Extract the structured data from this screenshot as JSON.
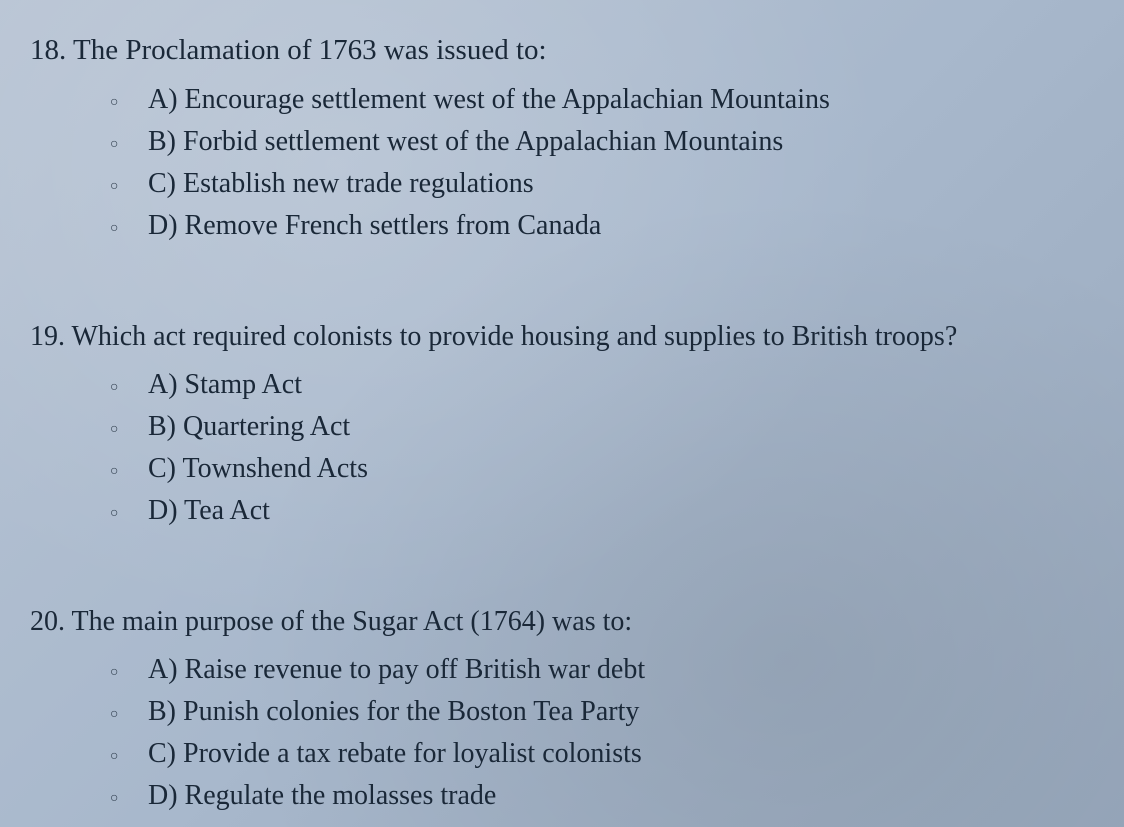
{
  "questions": [
    {
      "number": "18.",
      "stem": "The Proclamation of 1763 was issued to:",
      "options": [
        "A) Encourage settlement west of the Appalachian Mountains",
        "B) Forbid settlement west of the Appalachian Mountains",
        "C) Establish new trade regulations",
        "D) Remove French settlers from Canada"
      ]
    },
    {
      "number": "19.",
      "stem": "Which act required colonists to provide housing and supplies to British troops?",
      "options": [
        "A) Stamp Act",
        "B) Quartering Act",
        "C) Townshend Acts",
        "D) Tea Act"
      ]
    },
    {
      "number": "20.",
      "stem": "The main purpose of the Sugar Act (1764) was to:",
      "options": [
        "A) Raise revenue to pay off British war debt",
        "B) Punish colonies for the Boston Tea Party",
        "C) Provide a tax rebate for loyalist colonists",
        "D) Regulate the molasses trade"
      ]
    }
  ],
  "bullet_char": "○",
  "colors": {
    "text": "#1a2838",
    "background_start": "#b8c4d4",
    "background_end": "#98a8bc"
  },
  "typography": {
    "font_family": "Times New Roman",
    "question_fontsize": 28,
    "option_fontsize": 28,
    "bullet_fontsize": 14
  }
}
